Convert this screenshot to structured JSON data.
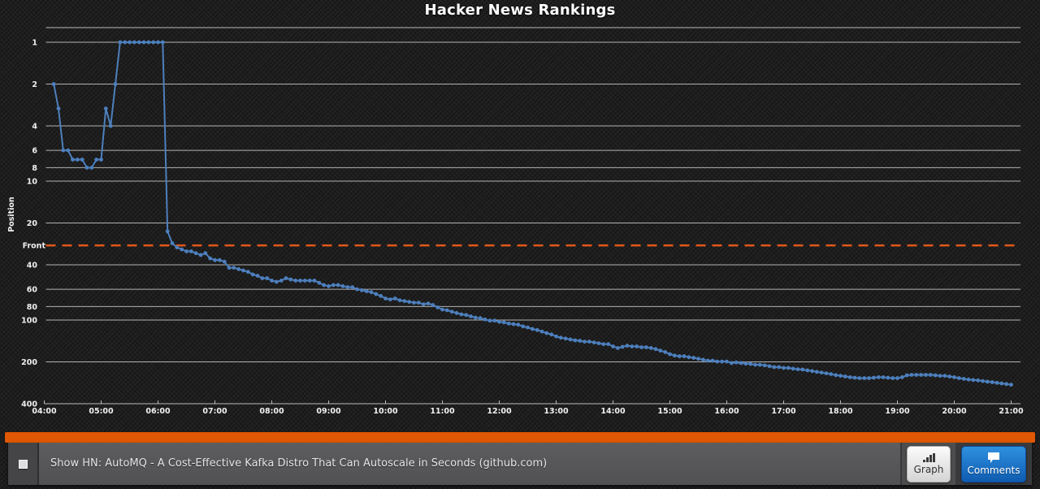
{
  "title": "Hacker News Rankings",
  "colors": {
    "line": "#4d7fbd",
    "front_line": "#e2571a",
    "grid": "#cdcdcd",
    "tick_text": "#f0f0f0",
    "accent_bar": "#e05803"
  },
  "chart_data": {
    "type": "line",
    "title": "Hacker News Rankings",
    "ylabel": "Position",
    "y_scale": "logarithmic-inverted",
    "grid": true,
    "y_ticks": [
      1,
      2,
      4,
      6,
      8,
      10,
      20,
      40,
      60,
      80,
      100,
      200,
      400
    ],
    "x_ticks": [
      "04:00",
      "05:00",
      "06:00",
      "07:00",
      "08:00",
      "09:00",
      "10:00",
      "11:00",
      "12:00",
      "13:00",
      "14:00",
      "15:00",
      "16:00",
      "17:00",
      "18:00",
      "19:00",
      "20:00",
      "21:00"
    ],
    "front_line": {
      "label": "Front",
      "position": 29
    },
    "series": [
      {
        "name": "Show HN: AutoMQ - A Cost-Effective Kafka Distro That Can Autoscale in Seconds",
        "points": [
          [
            "04:10",
            2
          ],
          [
            "04:15",
            3
          ],
          [
            "04:20",
            6
          ],
          [
            "04:25",
            6
          ],
          [
            "04:30",
            7
          ],
          [
            "04:35",
            7
          ],
          [
            "04:40",
            7
          ],
          [
            "04:45",
            8
          ],
          [
            "04:50",
            8
          ],
          [
            "04:55",
            7
          ],
          [
            "05:00",
            7
          ],
          [
            "05:05",
            3
          ],
          [
            "05:10",
            4
          ],
          [
            "05:15",
            2
          ],
          [
            "05:20",
            1
          ],
          [
            "05:25",
            1
          ],
          [
            "05:30",
            1
          ],
          [
            "05:35",
            1
          ],
          [
            "05:40",
            1
          ],
          [
            "05:45",
            1
          ],
          [
            "05:50",
            1
          ],
          [
            "05:55",
            1
          ],
          [
            "06:00",
            1
          ],
          [
            "06:05",
            1
          ],
          [
            "06:10",
            23
          ],
          [
            "06:15",
            28
          ],
          [
            "06:20",
            30
          ],
          [
            "06:25",
            31
          ],
          [
            "06:30",
            32
          ],
          [
            "06:35",
            32
          ],
          [
            "06:40",
            33
          ],
          [
            "06:45",
            34
          ],
          [
            "06:50",
            33
          ],
          [
            "06:55",
            36
          ],
          [
            "07:00",
            37
          ],
          [
            "07:05",
            37
          ],
          [
            "07:10",
            38
          ],
          [
            "07:15",
            42
          ],
          [
            "07:20",
            42
          ],
          [
            "07:25",
            43
          ],
          [
            "07:30",
            44
          ],
          [
            "07:35",
            45
          ],
          [
            "07:40",
            47
          ],
          [
            "07:45",
            48
          ],
          [
            "07:50",
            50
          ],
          [
            "07:55",
            50
          ],
          [
            "08:00",
            52
          ],
          [
            "08:05",
            53
          ],
          [
            "08:10",
            52
          ],
          [
            "08:15",
            50
          ],
          [
            "08:20",
            51
          ],
          [
            "08:25",
            52
          ],
          [
            "08:30",
            52
          ],
          [
            "08:35",
            52
          ],
          [
            "08:40",
            52
          ],
          [
            "08:45",
            52
          ],
          [
            "08:50",
            54
          ],
          [
            "08:55",
            56
          ],
          [
            "09:00",
            57
          ],
          [
            "09:05",
            56
          ],
          [
            "09:10",
            56
          ],
          [
            "09:15",
            57
          ],
          [
            "09:20",
            58
          ],
          [
            "09:25",
            58
          ],
          [
            "09:30",
            60
          ],
          [
            "09:35",
            61
          ],
          [
            "09:40",
            62
          ],
          [
            "09:45",
            63
          ],
          [
            "09:50",
            65
          ],
          [
            "09:55",
            67
          ],
          [
            "10:00",
            70
          ],
          [
            "10:05",
            71
          ],
          [
            "10:10",
            70
          ],
          [
            "10:15",
            72
          ],
          [
            "10:20",
            73
          ],
          [
            "10:25",
            74
          ],
          [
            "10:30",
            75
          ],
          [
            "10:35",
            75
          ],
          [
            "10:40",
            77
          ],
          [
            "10:45",
            76
          ],
          [
            "10:50",
            78
          ],
          [
            "10:55",
            81
          ],
          [
            "11:00",
            84
          ],
          [
            "11:05",
            85
          ],
          [
            "11:10",
            87
          ],
          [
            "11:15",
            89
          ],
          [
            "11:20",
            91
          ],
          [
            "11:25",
            92
          ],
          [
            "11:30",
            94
          ],
          [
            "11:35",
            96
          ],
          [
            "11:40",
            97
          ],
          [
            "11:45",
            99
          ],
          [
            "11:50",
            101
          ],
          [
            "11:55",
            101
          ],
          [
            "12:00",
            103
          ],
          [
            "12:05",
            104
          ],
          [
            "12:10",
            106
          ],
          [
            "12:15",
            107
          ],
          [
            "12:20",
            108
          ],
          [
            "12:25",
            111
          ],
          [
            "12:30",
            113
          ],
          [
            "12:35",
            116
          ],
          [
            "12:40",
            118
          ],
          [
            "12:45",
            121
          ],
          [
            "12:50",
            124
          ],
          [
            "12:55",
            127
          ],
          [
            "13:00",
            131
          ],
          [
            "13:05",
            134
          ],
          [
            "13:10",
            136
          ],
          [
            "13:15",
            138
          ],
          [
            "13:20",
            140
          ],
          [
            "13:25",
            141
          ],
          [
            "13:30",
            143
          ],
          [
            "13:35",
            143
          ],
          [
            "13:40",
            145
          ],
          [
            "13:45",
            147
          ],
          [
            "13:50",
            149
          ],
          [
            "13:55",
            149
          ],
          [
            "14:00",
            155
          ],
          [
            "14:05",
            159
          ],
          [
            "14:10",
            156
          ],
          [
            "14:15",
            153
          ],
          [
            "14:20",
            155
          ],
          [
            "14:25",
            155
          ],
          [
            "14:30",
            157
          ],
          [
            "14:35",
            157
          ],
          [
            "14:40",
            159
          ],
          [
            "14:45",
            162
          ],
          [
            "14:50",
            166
          ],
          [
            "14:55",
            170
          ],
          [
            "15:00",
            176
          ],
          [
            "15:05",
            180
          ],
          [
            "15:10",
            182
          ],
          [
            "15:15",
            182
          ],
          [
            "15:20",
            185
          ],
          [
            "15:25",
            187
          ],
          [
            "15:30",
            190
          ],
          [
            "15:35",
            193
          ],
          [
            "15:40",
            196
          ],
          [
            "15:45",
            196
          ],
          [
            "15:50",
            199
          ],
          [
            "15:55",
            199
          ],
          [
            "16:00",
            199
          ],
          [
            "16:05",
            204
          ],
          [
            "16:10",
            202
          ],
          [
            "16:15",
            204
          ],
          [
            "16:20",
            206
          ],
          [
            "16:25",
            207
          ],
          [
            "16:30",
            210
          ],
          [
            "16:35",
            210
          ],
          [
            "16:40",
            212
          ],
          [
            "16:45",
            215
          ],
          [
            "16:50",
            218
          ],
          [
            "16:55",
            218
          ],
          [
            "17:00",
            221
          ],
          [
            "17:05",
            221
          ],
          [
            "17:10",
            224
          ],
          [
            "17:15",
            226
          ],
          [
            "17:20",
            227
          ],
          [
            "17:25",
            230
          ],
          [
            "17:30",
            233
          ],
          [
            "17:35",
            236
          ],
          [
            "17:40",
            239
          ],
          [
            "17:45",
            242
          ],
          [
            "17:50",
            245
          ],
          [
            "17:55",
            249
          ],
          [
            "18:00",
            252
          ],
          [
            "18:05",
            255
          ],
          [
            "18:10",
            258
          ],
          [
            "18:15",
            260
          ],
          [
            "18:20",
            262
          ],
          [
            "18:25",
            262
          ],
          [
            "18:30",
            262
          ],
          [
            "18:35",
            260
          ],
          [
            "18:40",
            258
          ],
          [
            "18:45",
            258
          ],
          [
            "18:50",
            260
          ],
          [
            "18:55",
            262
          ],
          [
            "19:00",
            262
          ],
          [
            "19:05",
            258
          ],
          [
            "19:10",
            250
          ],
          [
            "19:15",
            248
          ],
          [
            "19:20",
            248
          ],
          [
            "19:25",
            248
          ],
          [
            "19:30",
            248
          ],
          [
            "19:35",
            248
          ],
          [
            "19:40",
            250
          ],
          [
            "19:45",
            252
          ],
          [
            "19:50",
            252
          ],
          [
            "19:55",
            255
          ],
          [
            "20:00",
            258
          ],
          [
            "20:05",
            262
          ],
          [
            "20:10",
            265
          ],
          [
            "20:15",
            268
          ],
          [
            "20:20",
            270
          ],
          [
            "20:25",
            272
          ],
          [
            "20:30",
            275
          ],
          [
            "20:35",
            278
          ],
          [
            "20:40",
            280
          ],
          [
            "20:45",
            283
          ],
          [
            "20:50",
            286
          ],
          [
            "20:55",
            289
          ],
          [
            "21:00",
            292
          ]
        ]
      }
    ]
  },
  "footer": {
    "story_title": "Show HN: AutoMQ - A Cost-Effective Kafka Distro That Can Autoscale in Seconds (github.com)",
    "buttons": {
      "graph": "Graph",
      "comments": "Comments"
    }
  }
}
